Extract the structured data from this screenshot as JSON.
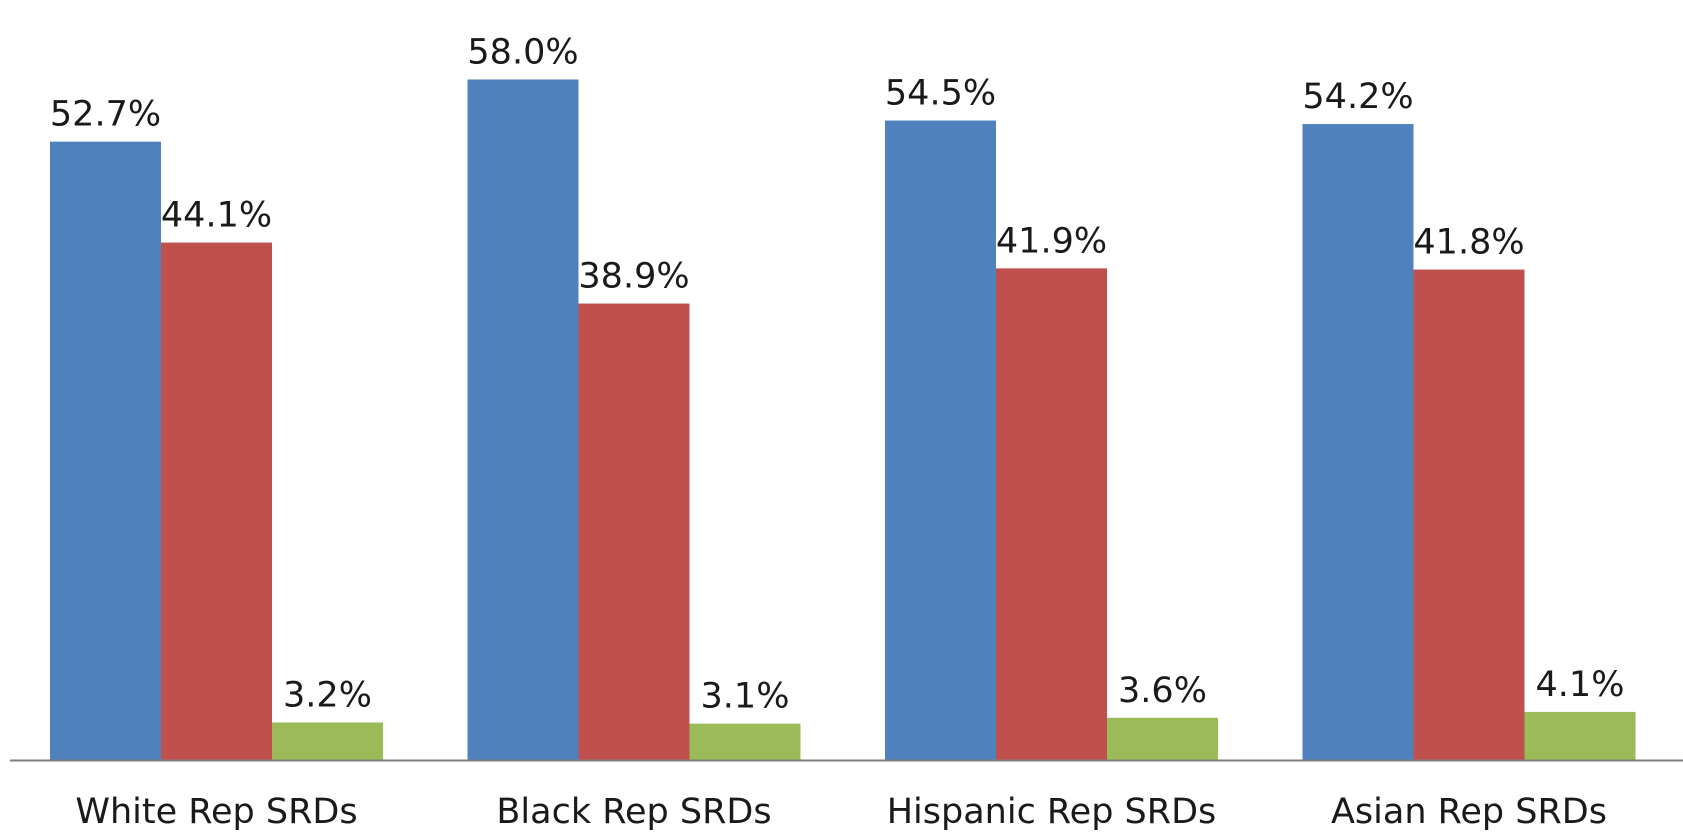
{
  "chart_data": {
    "type": "bar",
    "title": "",
    "xlabel": "",
    "ylabel": "",
    "categories": [
      "White Rep SRDs",
      "Black Rep SRDs",
      "Hispanic Rep SRDs",
      "Asian Rep SRDs"
    ],
    "series": [
      {
        "color": "#4f81bd",
        "values": [
          52.7,
          58.0,
          54.5,
          54.2
        ],
        "labels": [
          "52.7%",
          "58.0%",
          "54.5%",
          "54.2%"
        ]
      },
      {
        "color": "#c0504d",
        "values": [
          44.1,
          38.9,
          41.9,
          41.8
        ],
        "labels": [
          "44.1%",
          "38.9%",
          "41.9%",
          "41.8%"
        ]
      },
      {
        "color": "#9bbb59",
        "values": [
          3.2,
          3.1,
          3.6,
          4.1
        ],
        "labels": [
          "3.2%",
          "3.1%",
          "3.6%",
          "4.1%"
        ]
      }
    ],
    "ylim": [
      0,
      60
    ],
    "grid": false,
    "legend": "none",
    "axis_color": "#7f7f7f"
  }
}
